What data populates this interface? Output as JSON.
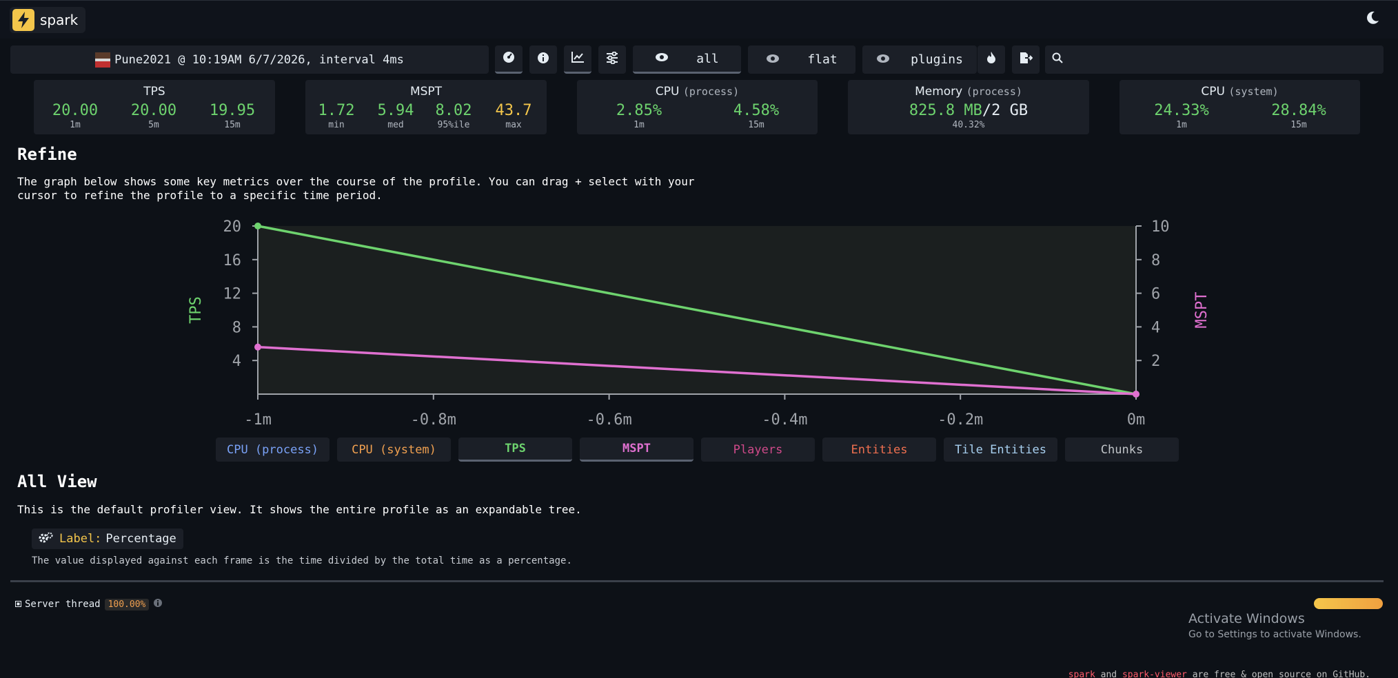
{
  "app": {
    "name": "spark"
  },
  "toolbar": {
    "meta": "Pune2021 @ 10:19AM 6/7/2026, interval 4ms",
    "view_all": "all",
    "view_flat": "flat",
    "view_plugins": "plugins",
    "search_placeholder": ""
  },
  "stats": {
    "tps": {
      "title": "TPS",
      "values": [
        "20.00",
        "20.00",
        "19.95"
      ],
      "caps": [
        "1m",
        "5m",
        "15m"
      ]
    },
    "mspt": {
      "title": "MSPT",
      "values": [
        "1.72",
        "5.94",
        "8.02",
        "43.7"
      ],
      "caps": [
        "min",
        "med",
        "95%ile",
        "max"
      ]
    },
    "cpu_process": {
      "title": "CPU",
      "sub": "(process)",
      "values": [
        "2.85%",
        "4.58%"
      ],
      "caps": [
        "1m",
        "15m"
      ]
    },
    "memory": {
      "title": "Memory",
      "sub": "(process)",
      "used": "825.8 MB",
      "sep": "/",
      "total": "2 GB",
      "cap": "40.32%"
    },
    "cpu_system": {
      "title": "CPU",
      "sub": "(system)",
      "values": [
        "24.33%",
        "28.84%"
      ],
      "caps": [
        "1m",
        "15m"
      ]
    }
  },
  "refine": {
    "heading": "Refine",
    "text": "The graph below shows some key metrics over the course of the profile. You can drag + select with your\ncursor to refine the profile to a specific time period."
  },
  "chart_data": {
    "type": "line",
    "x": [
      "-1m",
      "0m"
    ],
    "x_ticks": [
      "-1m",
      "-0.8m",
      "-0.6m",
      "-0.4m",
      "-0.2m",
      "0m"
    ],
    "y_left": {
      "label": "TPS",
      "ticks": [
        "20",
        "16",
        "12",
        "8",
        "4"
      ],
      "range": [
        0,
        20
      ]
    },
    "y_right": {
      "label": "MSPT",
      "ticks": [
        "10",
        "8",
        "6",
        "4",
        "2"
      ],
      "range": [
        0,
        10
      ]
    },
    "series": [
      {
        "name": "TPS",
        "axis": "left",
        "color": "#6ed36e",
        "values": [
          20,
          0
        ]
      },
      {
        "name": "MSPT",
        "axis": "right",
        "color": "#e070d0",
        "values": [
          2.8,
          0
        ]
      }
    ]
  },
  "legend": [
    {
      "label": "CPU (process)",
      "color": "#7aa2f7",
      "on": false
    },
    {
      "label": "CPU (system)",
      "color": "#f0a050",
      "on": false
    },
    {
      "label": "TPS",
      "color": "#6ed36e",
      "on": true
    },
    {
      "label": "MSPT",
      "color": "#e070d0",
      "on": true
    },
    {
      "label": "Players",
      "color": "#d04a8a",
      "on": false
    },
    {
      "label": "Entities",
      "color": "#f07050",
      "on": false
    },
    {
      "label": "Tile Entities",
      "color": "#a8d0f0",
      "on": false
    },
    {
      "label": "Chunks",
      "color": "#c0c4c8",
      "on": false
    }
  ],
  "allview": {
    "heading": "All View",
    "text": "This is the default profiler view. It shows the entire profile as an expandable tree.",
    "label_key": "Label:",
    "label_value": "Percentage",
    "note": "The value displayed against each frame is the time divided by the total time as a percentage."
  },
  "thread": {
    "name": "Server thread",
    "pct": "100.00%"
  },
  "windows": {
    "title": "Activate Windows",
    "sub": "Go to Settings to activate Windows."
  },
  "footer": {
    "spark": "spark",
    "and": " and ",
    "viewer": "spark-viewer",
    "rest": " are free & open source on GitHub."
  }
}
